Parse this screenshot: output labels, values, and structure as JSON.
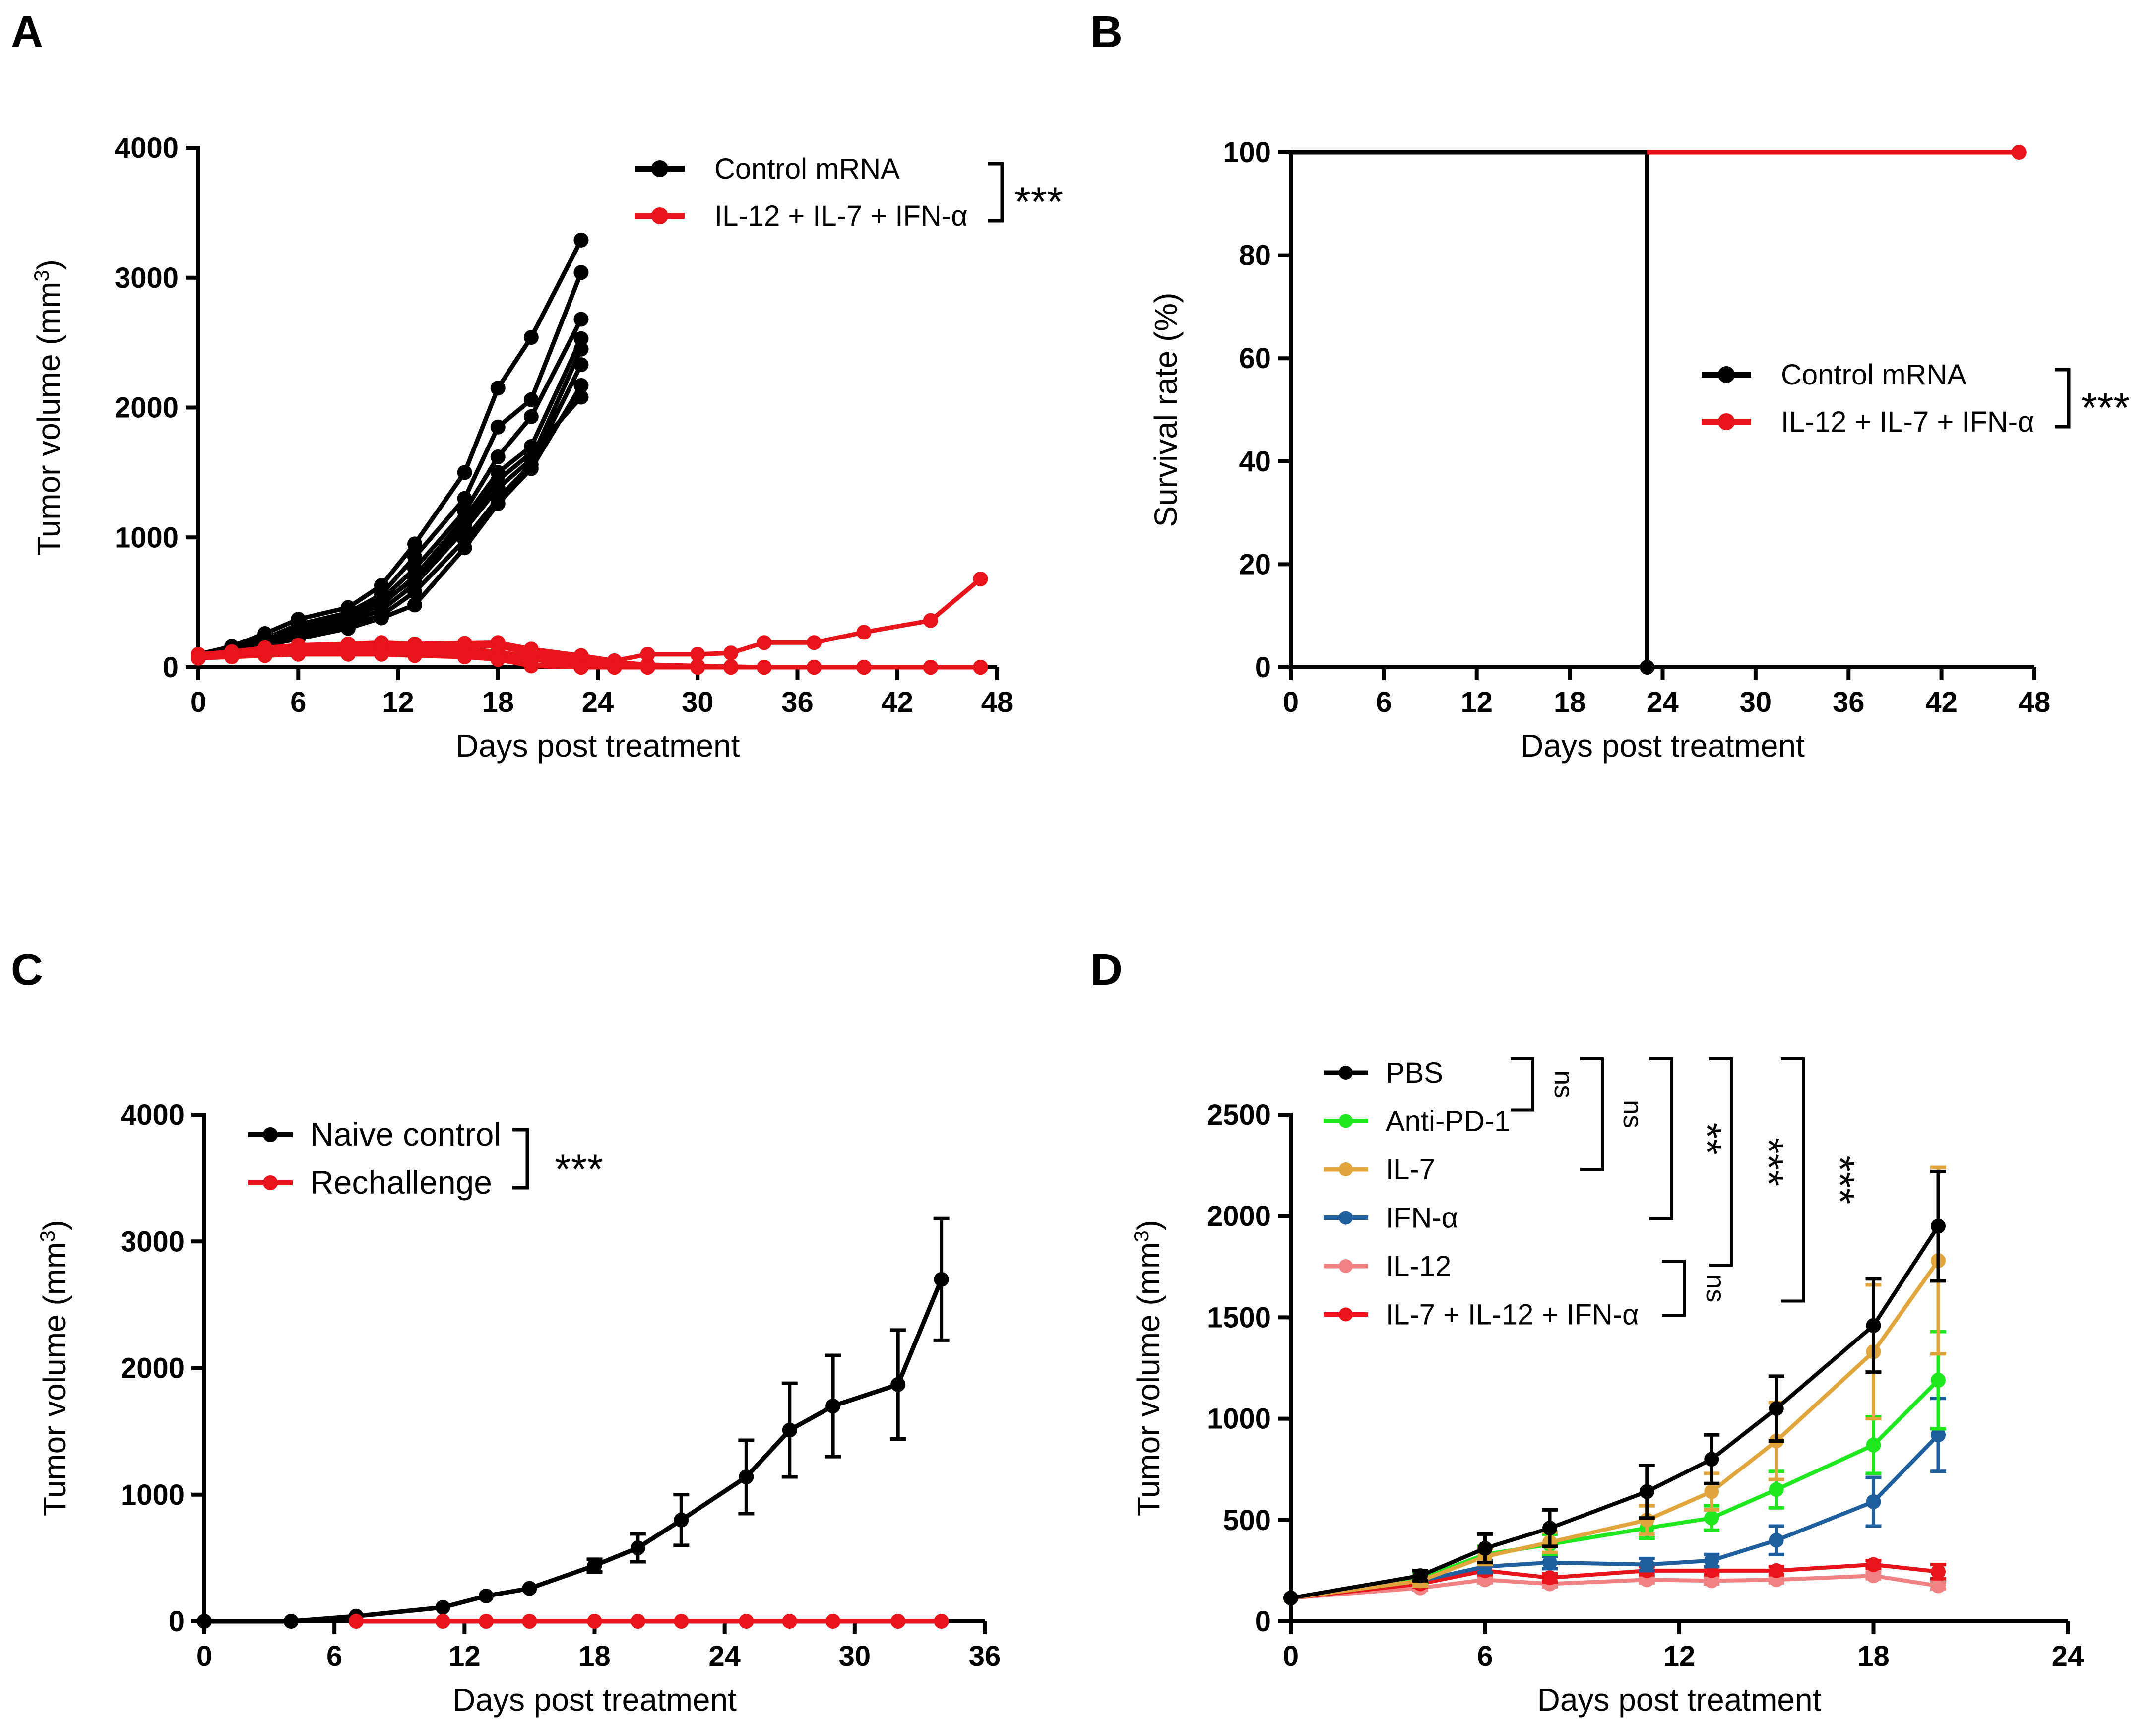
{
  "figure": {
    "background": "#ffffff",
    "colors": {
      "black": "#000000",
      "red": "#e8141b",
      "green": "#1fe81f",
      "orange": "#e1a53d",
      "blue": "#205f9e",
      "pink": "#f08284"
    }
  },
  "chart_data": [
    {
      "id": "A",
      "panel_label": "A",
      "type": "line",
      "title": "",
      "xlabel": "Days post treatment",
      "ylabel": "Tumor volume (mm",
      "ylabel_sup": "3",
      "ylabel_suffix": ")",
      "xlim": [
        0,
        48
      ],
      "ylim": [
        0,
        4000
      ],
      "xticks": [
        0,
        6,
        12,
        18,
        24,
        30,
        36,
        42,
        48
      ],
      "yticks": [
        0,
        1000,
        2000,
        3000,
        4000
      ],
      "legend": {
        "placement": "top-right",
        "entries": [
          {
            "label": "Control mRNA",
            "color": "#000000"
          },
          {
            "label": "IL-12 + IL-7 + IFN-α",
            "color": "#e8141b"
          }
        ],
        "significance": "***"
      },
      "series": [
        {
          "name": "Control mRNA",
          "color": "#000000",
          "x": [
            0,
            2,
            4,
            6,
            9,
            11,
            13,
            16,
            18,
            20,
            23
          ],
          "y": [
            100,
            160,
            260,
            370,
            460,
            630,
            950,
            1500,
            2150,
            2540,
            3290
          ]
        },
        {
          "name": "Control mRNA",
          "color": "#000000",
          "x": [
            0,
            2,
            4,
            6,
            9,
            11,
            13,
            16,
            18,
            20,
            23
          ],
          "y": [
            90,
            140,
            220,
            330,
            420,
            560,
            850,
            1300,
            1850,
            2060,
            3040
          ]
        },
        {
          "name": "Control mRNA",
          "color": "#000000",
          "x": [
            0,
            2,
            4,
            6,
            9,
            11,
            13,
            16,
            18,
            20,
            23
          ],
          "y": [
            95,
            150,
            230,
            300,
            400,
            520,
            760,
            1200,
            1620,
            1930,
            2680
          ]
        },
        {
          "name": "Control mRNA",
          "color": "#000000",
          "x": [
            0,
            2,
            4,
            6,
            9,
            11,
            13,
            16,
            18,
            20,
            23
          ],
          "y": [
            85,
            130,
            200,
            280,
            380,
            480,
            700,
            1150,
            1500,
            1700,
            2530
          ]
        },
        {
          "name": "Control mRNA",
          "color": "#000000",
          "x": [
            0,
            2,
            4,
            6,
            9,
            11,
            13,
            16,
            18,
            20,
            23
          ],
          "y": [
            80,
            120,
            190,
            260,
            350,
            440,
            640,
            1060,
            1380,
            1600,
            2450
          ]
        },
        {
          "name": "Control mRNA",
          "color": "#000000",
          "x": [
            0,
            2,
            4,
            6,
            9,
            11,
            13,
            16,
            18,
            20,
            23
          ],
          "y": [
            75,
            110,
            180,
            240,
            320,
            400,
            580,
            980,
            1300,
            1560,
            2330
          ]
        },
        {
          "name": "Control mRNA",
          "color": "#000000",
          "x": [
            0,
            2,
            4,
            6,
            9,
            11,
            13,
            16,
            18,
            20,
            23
          ],
          "y": [
            70,
            100,
            170,
            220,
            300,
            380,
            480,
            920,
            1260,
            1530,
            2170
          ]
        },
        {
          "name": "Control mRNA",
          "color": "#000000",
          "x": [
            0,
            2,
            4,
            6,
            9,
            11,
            13,
            16,
            18,
            20,
            23
          ],
          "y": [
            90,
            140,
            210,
            300,
            390,
            500,
            680,
            1100,
            1440,
            1650,
            2080
          ]
        },
        {
          "name": "IL-12 + IL-7 + IFN-α",
          "color": "#e8141b",
          "x": [
            0,
            2,
            4,
            6,
            9,
            11,
            13,
            16,
            18,
            20,
            23,
            25,
            27,
            30,
            32,
            34,
            37,
            40,
            44,
            47
          ],
          "y": [
            100,
            120,
            150,
            170,
            180,
            190,
            180,
            185,
            190,
            140,
            90,
            50,
            100,
            100,
            110,
            190,
            190,
            270,
            360,
            680
          ]
        },
        {
          "name": "IL-12 + IL-7 + IFN-α",
          "color": "#e8141b",
          "x": [
            0,
            2,
            4,
            6,
            9,
            11,
            13,
            16,
            18,
            20,
            23,
            25,
            27,
            30,
            32,
            34,
            37,
            40,
            44,
            47
          ],
          "y": [
            90,
            110,
            130,
            150,
            160,
            170,
            160,
            170,
            160,
            110,
            60,
            40,
            20,
            10,
            5,
            0,
            0,
            0,
            0,
            0
          ]
        },
        {
          "name": "IL-12 + IL-7 + IFN-α",
          "color": "#e8141b",
          "x": [
            0,
            2,
            4,
            6,
            9,
            11,
            13,
            16,
            18,
            20,
            23,
            25,
            27,
            30,
            32,
            34,
            37,
            40,
            44,
            47
          ],
          "y": [
            85,
            100,
            120,
            140,
            150,
            160,
            150,
            140,
            120,
            80,
            40,
            20,
            10,
            0,
            0,
            0,
            0,
            0,
            0,
            0
          ]
        },
        {
          "name": "IL-12 + IL-7 + IFN-α",
          "color": "#e8141b",
          "x": [
            0,
            2,
            4,
            6,
            9,
            11,
            13,
            16,
            18,
            20,
            23,
            25,
            27,
            30,
            32,
            34,
            37,
            40,
            44,
            47
          ],
          "y": [
            80,
            90,
            110,
            120,
            130,
            140,
            130,
            120,
            100,
            60,
            20,
            0,
            0,
            0,
            0,
            0,
            0,
            0,
            0,
            0
          ]
        },
        {
          "name": "IL-12 + IL-7 + IFN-α",
          "color": "#e8141b",
          "x": [
            0,
            2,
            4,
            6,
            9,
            11,
            13,
            16,
            18,
            20,
            23,
            25,
            27,
            30,
            32,
            34,
            37,
            40,
            44,
            47
          ],
          "y": [
            75,
            85,
            100,
            110,
            120,
            120,
            110,
            100,
            80,
            20,
            0,
            0,
            0,
            0,
            0,
            0,
            0,
            0,
            0,
            0
          ]
        },
        {
          "name": "IL-12 + IL-7 + IFN-α",
          "color": "#e8141b",
          "x": [
            0,
            2,
            4,
            6,
            9,
            11,
            13,
            16,
            18,
            20,
            23,
            25,
            27,
            30,
            32,
            34,
            37,
            40,
            44,
            47
          ],
          "y": [
            70,
            80,
            90,
            100,
            100,
            100,
            90,
            80,
            60,
            10,
            0,
            0,
            0,
            0,
            0,
            0,
            0,
            0,
            0,
            0
          ]
        }
      ]
    },
    {
      "id": "B",
      "panel_label": "B",
      "type": "line",
      "title": "",
      "xlabel": "Days post treatment",
      "ylabel": "Survival rate (%)",
      "xlim": [
        0,
        48
      ],
      "ylim": [
        0,
        100
      ],
      "xticks": [
        0,
        6,
        12,
        18,
        24,
        30,
        36,
        42,
        48
      ],
      "yticks": [
        0,
        20,
        40,
        60,
        80,
        100
      ],
      "legend": {
        "placement": "center-right",
        "entries": [
          {
            "label": "Control mRNA",
            "color": "#000000"
          },
          {
            "label": "IL-12 + IL-7 + IFN-α",
            "color": "#e8141b"
          }
        ],
        "significance": "***"
      },
      "series": [
        {
          "name": "Control mRNA",
          "color": "#000000",
          "step": true,
          "x": [
            0,
            23,
            23
          ],
          "y": [
            100,
            100,
            0
          ],
          "markers": [
            [
              23,
              0
            ]
          ]
        },
        {
          "name": "IL-12 + IL-7 + IFN-α",
          "color": "#e8141b",
          "step": true,
          "x": [
            23,
            47
          ],
          "y": [
            100,
            100
          ],
          "markers": [
            [
              47,
              100
            ]
          ]
        }
      ]
    },
    {
      "id": "C",
      "panel_label": "C",
      "type": "line",
      "title": "",
      "xlabel": "Days post treatment",
      "ylabel": "Tumor volume (mm",
      "ylabel_sup": "3",
      "ylabel_suffix": ")",
      "xlim": [
        0,
        36
      ],
      "ylim": [
        0,
        4000
      ],
      "xticks": [
        0,
        6,
        12,
        18,
        24,
        30,
        36
      ],
      "yticks": [
        0,
        1000,
        2000,
        3000,
        4000
      ],
      "legend": {
        "placement": "top-left",
        "entries": [
          {
            "label": "Naive control",
            "color": "#000000"
          },
          {
            "label": "Rechallenge",
            "color": "#e8141b"
          }
        ],
        "significance": "***"
      },
      "series": [
        {
          "name": "Naive control",
          "color": "#000000",
          "x": [
            0,
            4,
            7,
            11,
            13,
            15,
            18,
            20,
            22,
            25,
            27,
            29,
            32,
            34
          ],
          "y": [
            0,
            0,
            40,
            110,
            200,
            260,
            440,
            580,
            800,
            1140,
            1510,
            1700,
            1870,
            2700
          ],
          "err": [
            0,
            0,
            0,
            0,
            0,
            0,
            50,
            110,
            200,
            290,
            370,
            400,
            430,
            480
          ]
        },
        {
          "name": "Rechallenge",
          "color": "#e8141b",
          "x": [
            7,
            11,
            13,
            15,
            18,
            20,
            22,
            25,
            27,
            29,
            32,
            34
          ],
          "y": [
            0,
            0,
            0,
            0,
            0,
            0,
            0,
            0,
            0,
            0,
            0,
            0
          ],
          "err": []
        }
      ]
    },
    {
      "id": "D",
      "panel_label": "D",
      "type": "line",
      "title": "",
      "xlabel": "Days post treatment",
      "ylabel": "Tumor volume (mm",
      "ylabel_sup": "3",
      "ylabel_suffix": ")",
      "xlim": [
        0,
        24
      ],
      "ylim": [
        0,
        2500
      ],
      "xticks": [
        0,
        6,
        12,
        18,
        24
      ],
      "yticks": [
        0,
        500,
        1000,
        1500,
        2000,
        2500
      ],
      "legend": {
        "placement": "top-left",
        "entries": [
          {
            "label": "PBS",
            "color": "#000000"
          },
          {
            "label": "Anti-PD-1",
            "color": "#1fe81f"
          },
          {
            "label": "IL-7",
            "color": "#e1a53d"
          },
          {
            "label": "IFN-α",
            "color": "#205f9e"
          },
          {
            "label": "IL-12",
            "color": "#f08284"
          },
          {
            "label": "IL-7 + IL-12 + IFN-α",
            "color": "#e8141b"
          }
        ],
        "comparisons": [
          {
            "label": "ns",
            "from": "PBS",
            "to": "Anti-PD-1"
          },
          {
            "label": "ns",
            "from": "PBS",
            "to": "IL-7"
          },
          {
            "label": "**",
            "from": "PBS",
            "to": "IFN-α"
          },
          {
            "label": "***",
            "from": "PBS",
            "to": "IL-12"
          },
          {
            "label": "***",
            "from": "PBS",
            "to": "IL-7 + IL-12 + IFN-α"
          },
          {
            "label": "ns",
            "from": "IL-12",
            "to": "IL-7 + IL-12 + IFN-α"
          }
        ]
      },
      "series": [
        {
          "name": "IL-12",
          "color": "#f08284",
          "x": [
            0,
            4,
            6,
            8,
            11,
            13,
            15,
            18,
            20
          ],
          "y": [
            115,
            165,
            205,
            185,
            205,
            200,
            205,
            225,
            175
          ],
          "err": [
            0,
            10,
            15,
            15,
            15,
            15,
            15,
            15,
            15
          ]
        },
        {
          "name": "IL-7 + IL-12 + IFN-α",
          "color": "#e8141b",
          "x": [
            0,
            4,
            6,
            8,
            11,
            13,
            15,
            18,
            20
          ],
          "y": [
            115,
            185,
            250,
            215,
            250,
            250,
            250,
            280,
            245
          ],
          "err": [
            0,
            15,
            20,
            20,
            20,
            20,
            20,
            20,
            35
          ]
        },
        {
          "name": "IFN-α",
          "color": "#205f9e",
          "x": [
            0,
            4,
            6,
            8,
            11,
            13,
            15,
            18,
            20
          ],
          "y": [
            115,
            200,
            270,
            290,
            280,
            300,
            400,
            590,
            920
          ],
          "err": [
            0,
            20,
            30,
            30,
            30,
            30,
            70,
            120,
            180
          ]
        },
        {
          "name": "Anti-PD-1",
          "color": "#1fe81f",
          "x": [
            0,
            4,
            6,
            8,
            11,
            13,
            15,
            18,
            20
          ],
          "y": [
            115,
            210,
            330,
            380,
            460,
            510,
            650,
            870,
            1190
          ],
          "err": [
            0,
            25,
            40,
            50,
            50,
            60,
            90,
            140,
            240
          ]
        },
        {
          "name": "IL-7",
          "color": "#e1a53d",
          "x": [
            0,
            4,
            6,
            8,
            11,
            13,
            15,
            18,
            20
          ],
          "y": [
            115,
            200,
            320,
            390,
            500,
            640,
            890,
            1330,
            1780
          ],
          "err": [
            0,
            25,
            40,
            50,
            70,
            90,
            190,
            330,
            460
          ]
        },
        {
          "name": "PBS",
          "color": "#000000",
          "x": [
            0,
            4,
            6,
            8,
            11,
            13,
            15,
            18,
            20
          ],
          "y": [
            115,
            225,
            360,
            460,
            640,
            800,
            1050,
            1460,
            1950
          ],
          "err": [
            0,
            25,
            70,
            90,
            130,
            120,
            160,
            230,
            270
          ]
        }
      ]
    }
  ]
}
